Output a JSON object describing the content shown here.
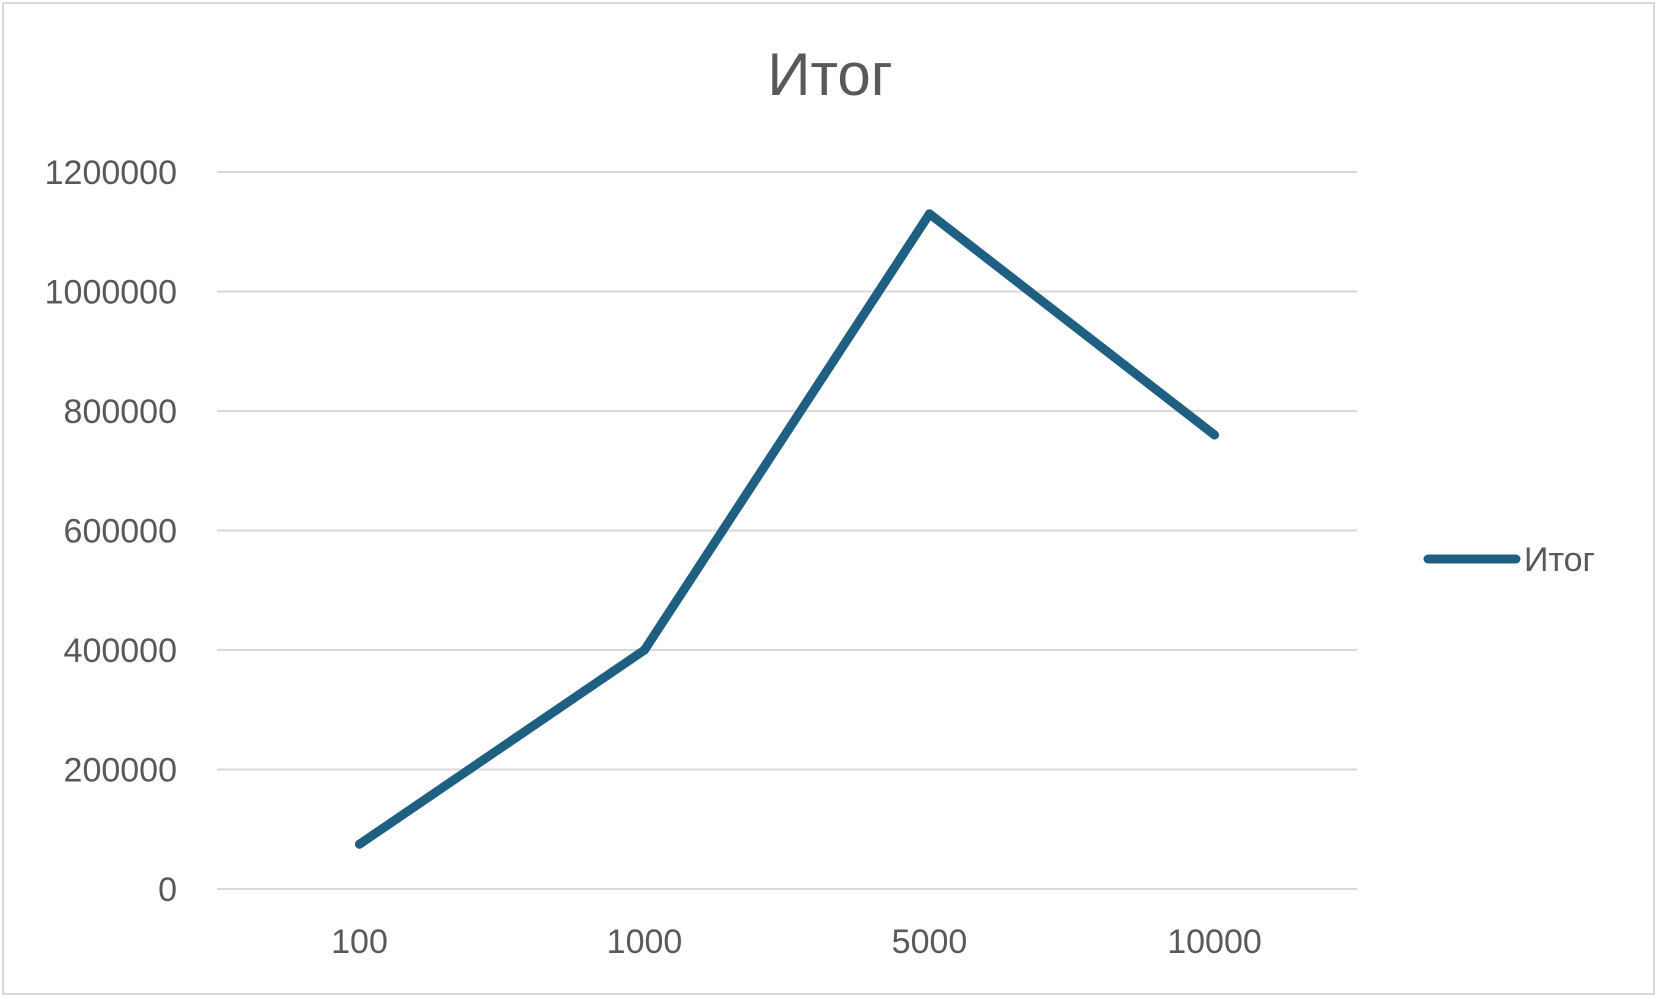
{
  "chart_data": {
    "type": "line",
    "title": "Итог",
    "categories": [
      "100",
      "1000",
      "5000",
      "10000"
    ],
    "series": [
      {
        "name": "Итог",
        "color": "#1f5f82",
        "values": [
          75000,
          400000,
          1130000,
          760000
        ]
      }
    ],
    "y_ticks": [
      "0",
      "200000",
      "400000",
      "600000",
      "800000",
      "1000000",
      "1200000"
    ],
    "ylim": [
      0,
      1200000
    ],
    "grid": true,
    "legend_position": "right",
    "xlabel": "",
    "ylabel": ""
  },
  "colors": {
    "gridline": "#d9d9d9",
    "text": "#595959",
    "border": "#d9d9d9"
  }
}
